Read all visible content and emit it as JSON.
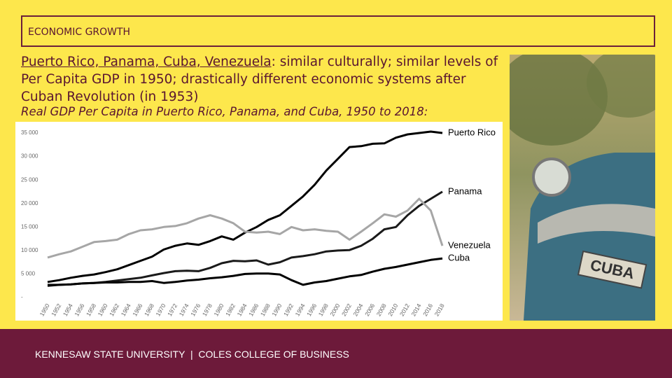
{
  "header": {
    "title": "ECONOMIC GROWTH"
  },
  "intro": {
    "countries": "Puerto Rico, Panama, Cuba, Venezuela",
    "text": ": similar culturally; similar levels of Per Capita GDP in 1950; drastically different economic systems after Cuban Revolution (in 1953)"
  },
  "chart_data": {
    "type": "line",
    "title": "Real GDP Per Capita in Puerto Rico, Panama, and Cuba, 1950 to 2018:",
    "x": [
      1950,
      1952,
      1954,
      1956,
      1958,
      1960,
      1962,
      1964,
      1966,
      1968,
      1970,
      1972,
      1974,
      1976,
      1978,
      1980,
      1982,
      1984,
      1986,
      1988,
      1990,
      1992,
      1994,
      1996,
      1998,
      2000,
      2002,
      2004,
      2006,
      2008,
      2010,
      2012,
      2014,
      2016,
      2018
    ],
    "xlim": [
      1950,
      2018
    ],
    "ylim": [
      0,
      35000
    ],
    "yticks": [
      {
        "value": 0,
        "label": "-"
      },
      {
        "value": 5000,
        "label": "5 000"
      },
      {
        "value": 10000,
        "label": "10 000"
      },
      {
        "value": 15000,
        "label": "15 000"
      },
      {
        "value": 20000,
        "label": "20 000"
      },
      {
        "value": 25000,
        "label": "25 000"
      },
      {
        "value": 30000,
        "label": "30 000"
      },
      {
        "value": 35000,
        "label": "35 000"
      }
    ],
    "series": [
      {
        "name": "Puerto Rico",
        "color": "#000000",
        "values": [
          3300,
          3700,
          4200,
          4600,
          4900,
          5400,
          6000,
          6900,
          7800,
          8700,
          10200,
          11000,
          11500,
          11200,
          12000,
          13000,
          12300,
          13800,
          15000,
          16500,
          17500,
          19500,
          21500,
          24000,
          27000,
          29500,
          32000,
          32200,
          32700,
          32800,
          34000,
          34700,
          35000,
          35300,
          35000
        ]
      },
      {
        "name": "Panama",
        "color": "#1a1a1a",
        "values": [
          2700,
          2700,
          2800,
          3000,
          3100,
          3300,
          3600,
          3900,
          4200,
          4700,
          5200,
          5600,
          5700,
          5600,
          6300,
          7300,
          7800,
          7700,
          7900,
          7000,
          7500,
          8500,
          8800,
          9200,
          9800,
          10000,
          10100,
          11000,
          12500,
          14500,
          15000,
          17500,
          19500,
          21000,
          22500
        ]
      },
      {
        "name": "Venezuela",
        "color": "#a6a6a6",
        "values": [
          8500,
          9200,
          9800,
          10800,
          11800,
          12000,
          12300,
          13500,
          14300,
          14500,
          15000,
          15200,
          15800,
          16800,
          17500,
          16800,
          15800,
          14000,
          13800,
          14000,
          13500,
          15000,
          14300,
          14500,
          14200,
          14000,
          12300,
          14000,
          15800,
          17700,
          17200,
          18500,
          21000,
          18500,
          11000
        ]
      },
      {
        "name": "Cuba",
        "color": "#000000",
        "values": [
          2500,
          2700,
          2800,
          3000,
          3100,
          3200,
          3200,
          3300,
          3300,
          3500,
          3100,
          3300,
          3600,
          3800,
          4100,
          4300,
          4600,
          5000,
          5100,
          5100,
          4900,
          3700,
          2700,
          3200,
          3500,
          4000,
          4500,
          4800,
          5500,
          6100,
          6500,
          7000,
          7500,
          8000,
          8300
        ]
      }
    ]
  },
  "photo": {
    "plate": "CUBA"
  },
  "footer": {
    "text": "KENNESAW STATE UNIVERSITY  |  COLES COLLEGE OF BUSINESS"
  }
}
